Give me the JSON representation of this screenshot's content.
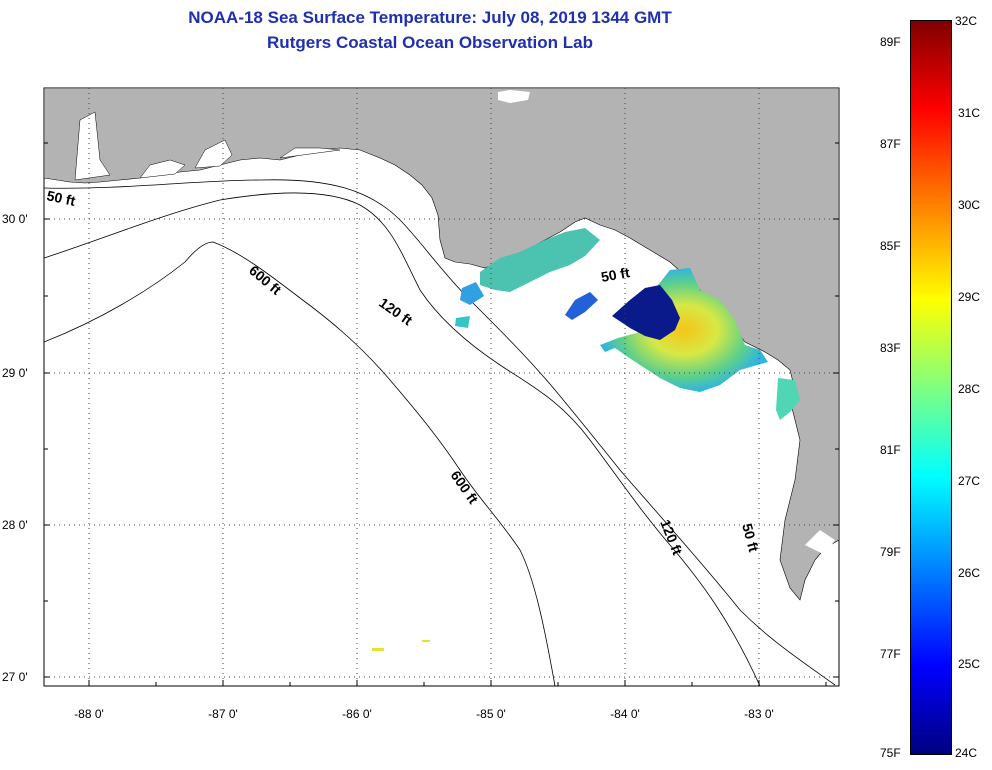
{
  "title_line1": "NOAA-18 Sea Surface Temperature:  July 08, 2019 1344 GMT",
  "title_line2": "Rutgers Coastal Ocean Observation Lab",
  "map": {
    "lon_labels": [
      "-88 0'",
      "-87 0'",
      "-86 0'",
      "-85 0'",
      "-84 0'",
      "-83 0'"
    ],
    "lat_labels": [
      "30 0'",
      "29 0'",
      "28 0'",
      "27 0'"
    ],
    "contour_labels": [
      "50 ft",
      "600 ft",
      "120 ft",
      "50 ft",
      "600 ft",
      "120 ft",
      "50 ft"
    ],
    "land_color": "#b3b3b3",
    "ocean_color": "#ffffff"
  },
  "colorbar": {
    "celsius": [
      "32C",
      "31C",
      "30C",
      "29C",
      "28C",
      "27C",
      "26C",
      "25C",
      "24C"
    ],
    "fahrenheit": [
      "89F",
      "87F",
      "85F",
      "83F",
      "81F",
      "79F",
      "77F",
      "75F"
    ],
    "colormap": "jet",
    "range_c": [
      24,
      32
    ]
  }
}
